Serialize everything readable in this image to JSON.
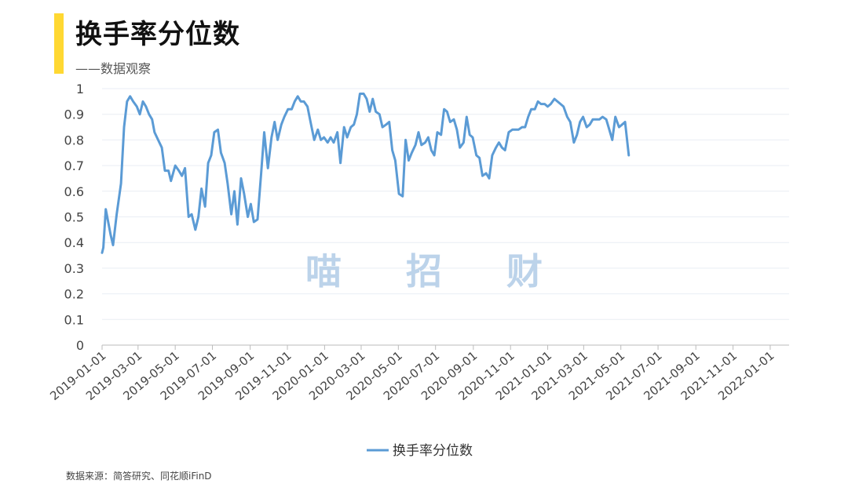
{
  "title": "换手率分位数",
  "subtitle": "——数据观察",
  "source": "数据来源：简答研究、同花顺iFinD",
  "watermark": [
    "喵",
    "招",
    "财"
  ],
  "colors": {
    "accent": "#ffd832",
    "line": "#5b9bd5",
    "grid": "#e9eef4",
    "watermark": "#bcd3ea"
  },
  "chart_data": {
    "type": "line",
    "title": "",
    "xlabel": "",
    "ylabel": "",
    "ylim": [
      0,
      1
    ],
    "yticks": [
      "0",
      "0.1",
      "0.2",
      "0.3",
      "0.4",
      "0.5",
      "0.6",
      "0.7",
      "0.8",
      "0.9",
      "1"
    ],
    "xticks": [
      "2019-01-01",
      "2019-03-01",
      "2019-05-01",
      "2019-07-01",
      "2019-09-01",
      "2019-11-01",
      "2020-01-01",
      "2020-03-01",
      "2020-05-01",
      "2020-07-01",
      "2020-09-01",
      "2020-11-01",
      "2021-01-01",
      "2021-03-01",
      "2021-05-01",
      "2021-07-01",
      "2021-09-01",
      "2021-11-01",
      "2022-01-01"
    ],
    "x_range": [
      "2019-01-01",
      "2022-02-01"
    ],
    "grid": "horizontal",
    "legend": "bottom-center",
    "series": [
      {
        "name": "换手率分位数",
        "points": [
          [
            "2019-01-01",
            0.36
          ],
          [
            "2019-01-03",
            0.38
          ],
          [
            "2019-01-07",
            0.53
          ],
          [
            "2019-01-11",
            0.48
          ],
          [
            "2019-01-15",
            0.43
          ],
          [
            "2019-01-19",
            0.39
          ],
          [
            "2019-01-25",
            0.51
          ],
          [
            "2019-02-01",
            0.63
          ],
          [
            "2019-02-06",
            0.85
          ],
          [
            "2019-02-11",
            0.95
          ],
          [
            "2019-02-16",
            0.97
          ],
          [
            "2019-02-21",
            0.95
          ],
          [
            "2019-02-27",
            0.93
          ],
          [
            "2019-03-04",
            0.9
          ],
          [
            "2019-03-09",
            0.95
          ],
          [
            "2019-03-14",
            0.93
          ],
          [
            "2019-03-19",
            0.9
          ],
          [
            "2019-03-24",
            0.88
          ],
          [
            "2019-03-28",
            0.83
          ],
          [
            "2019-04-03",
            0.8
          ],
          [
            "2019-04-09",
            0.77
          ],
          [
            "2019-04-14",
            0.68
          ],
          [
            "2019-04-20",
            0.68
          ],
          [
            "2019-04-24",
            0.64
          ],
          [
            "2019-05-01",
            0.7
          ],
          [
            "2019-05-07",
            0.68
          ],
          [
            "2019-05-12",
            0.66
          ],
          [
            "2019-05-17",
            0.69
          ],
          [
            "2019-05-23",
            0.5
          ],
          [
            "2019-05-28",
            0.51
          ],
          [
            "2019-06-03",
            0.45
          ],
          [
            "2019-06-08",
            0.5
          ],
          [
            "2019-06-13",
            0.61
          ],
          [
            "2019-06-19",
            0.54
          ],
          [
            "2019-06-24",
            0.71
          ],
          [
            "2019-06-29",
            0.74
          ],
          [
            "2019-07-04",
            0.83
          ],
          [
            "2019-07-10",
            0.84
          ],
          [
            "2019-07-15",
            0.75
          ],
          [
            "2019-07-21",
            0.71
          ],
          [
            "2019-07-26",
            0.63
          ],
          [
            "2019-08-01",
            0.51
          ],
          [
            "2019-08-06",
            0.6
          ],
          [
            "2019-08-11",
            0.47
          ],
          [
            "2019-08-17",
            0.65
          ],
          [
            "2019-08-22",
            0.59
          ],
          [
            "2019-08-28",
            0.5
          ],
          [
            "2019-09-02",
            0.55
          ],
          [
            "2019-09-07",
            0.48
          ],
          [
            "2019-09-13",
            0.49
          ],
          [
            "2019-09-19",
            0.67
          ],
          [
            "2019-09-24",
            0.83
          ],
          [
            "2019-09-30",
            0.69
          ],
          [
            "2019-10-06",
            0.81
          ],
          [
            "2019-10-11",
            0.87
          ],
          [
            "2019-10-16",
            0.8
          ],
          [
            "2019-10-22",
            0.86
          ],
          [
            "2019-10-27",
            0.89
          ],
          [
            "2019-11-02",
            0.92
          ],
          [
            "2019-11-08",
            0.92
          ],
          [
            "2019-11-13",
            0.95
          ],
          [
            "2019-11-18",
            0.97
          ],
          [
            "2019-11-23",
            0.95
          ],
          [
            "2019-11-28",
            0.95
          ],
          [
            "2019-12-04",
            0.93
          ],
          [
            "2019-12-09",
            0.87
          ],
          [
            "2019-12-15",
            0.8
          ],
          [
            "2019-12-21",
            0.84
          ],
          [
            "2019-12-26",
            0.8
          ],
          [
            "2019-12-31",
            0.81
          ],
          [
            "2020-01-06",
            0.79
          ],
          [
            "2020-01-11",
            0.81
          ],
          [
            "2020-01-16",
            0.79
          ],
          [
            "2020-01-22",
            0.83
          ],
          [
            "2020-01-27",
            0.71
          ],
          [
            "2020-02-02",
            0.85
          ],
          [
            "2020-02-07",
            0.81
          ],
          [
            "2020-02-13",
            0.85
          ],
          [
            "2020-02-18",
            0.86
          ],
          [
            "2020-02-23",
            0.9
          ],
          [
            "2020-02-28",
            0.98
          ],
          [
            "2020-03-05",
            0.98
          ],
          [
            "2020-03-10",
            0.96
          ],
          [
            "2020-03-15",
            0.91
          ],
          [
            "2020-03-20",
            0.96
          ],
          [
            "2020-03-25",
            0.91
          ],
          [
            "2020-03-31",
            0.9
          ],
          [
            "2020-04-05",
            0.85
          ],
          [
            "2020-04-11",
            0.86
          ],
          [
            "2020-04-16",
            0.87
          ],
          [
            "2020-04-21",
            0.76
          ],
          [
            "2020-04-26",
            0.72
          ],
          [
            "2020-05-02",
            0.59
          ],
          [
            "2020-05-08",
            0.58
          ],
          [
            "2020-05-13",
            0.8
          ],
          [
            "2020-05-18",
            0.72
          ],
          [
            "2020-05-23",
            0.75
          ],
          [
            "2020-05-29",
            0.78
          ],
          [
            "2020-06-03",
            0.83
          ],
          [
            "2020-06-08",
            0.78
          ],
          [
            "2020-06-14",
            0.79
          ],
          [
            "2020-06-19",
            0.81
          ],
          [
            "2020-06-24",
            0.76
          ],
          [
            "2020-06-29",
            0.74
          ],
          [
            "2020-07-04",
            0.83
          ],
          [
            "2020-07-10",
            0.82
          ],
          [
            "2020-07-15",
            0.92
          ],
          [
            "2020-07-20",
            0.91
          ],
          [
            "2020-07-25",
            0.87
          ],
          [
            "2020-07-31",
            0.88
          ],
          [
            "2020-08-05",
            0.84
          ],
          [
            "2020-08-10",
            0.77
          ],
          [
            "2020-08-16",
            0.79
          ],
          [
            "2020-08-21",
            0.89
          ],
          [
            "2020-08-26",
            0.82
          ],
          [
            "2020-08-31",
            0.81
          ],
          [
            "2020-09-06",
            0.74
          ],
          [
            "2020-09-11",
            0.73
          ],
          [
            "2020-09-16",
            0.66
          ],
          [
            "2020-09-22",
            0.67
          ],
          [
            "2020-09-27",
            0.65
          ],
          [
            "2020-10-02",
            0.74
          ],
          [
            "2020-10-08",
            0.77
          ],
          [
            "2020-10-13",
            0.79
          ],
          [
            "2020-10-18",
            0.77
          ],
          [
            "2020-10-23",
            0.76
          ],
          [
            "2020-10-29",
            0.83
          ],
          [
            "2020-11-04",
            0.84
          ],
          [
            "2020-11-09",
            0.84
          ],
          [
            "2020-11-14",
            0.84
          ],
          [
            "2020-11-20",
            0.85
          ],
          [
            "2020-11-25",
            0.85
          ],
          [
            "2020-11-30",
            0.89
          ],
          [
            "2020-12-05",
            0.92
          ],
          [
            "2020-12-11",
            0.92
          ],
          [
            "2020-12-16",
            0.95
          ],
          [
            "2020-12-21",
            0.94
          ],
          [
            "2020-12-27",
            0.94
          ],
          [
            "2021-01-01",
            0.93
          ],
          [
            "2021-01-06",
            0.94
          ],
          [
            "2021-01-12",
            0.96
          ],
          [
            "2021-01-17",
            0.95
          ],
          [
            "2021-01-22",
            0.94
          ],
          [
            "2021-01-27",
            0.93
          ],
          [
            "2021-02-02",
            0.89
          ],
          [
            "2021-02-07",
            0.87
          ],
          [
            "2021-02-13",
            0.79
          ],
          [
            "2021-02-18",
            0.82
          ],
          [
            "2021-02-23",
            0.87
          ],
          [
            "2021-02-28",
            0.89
          ],
          [
            "2021-03-06",
            0.85
          ],
          [
            "2021-03-11",
            0.86
          ],
          [
            "2021-03-16",
            0.88
          ],
          [
            "2021-03-22",
            0.88
          ],
          [
            "2021-03-27",
            0.88
          ],
          [
            "2021-04-01",
            0.89
          ],
          [
            "2021-04-07",
            0.88
          ],
          [
            "2021-04-12",
            0.84
          ],
          [
            "2021-04-17",
            0.8
          ],
          [
            "2021-04-22",
            0.89
          ],
          [
            "2021-04-28",
            0.85
          ],
          [
            "2021-05-03",
            0.86
          ],
          [
            "2021-05-08",
            0.87
          ],
          [
            "2021-05-14",
            0.74
          ]
        ]
      }
    ]
  }
}
